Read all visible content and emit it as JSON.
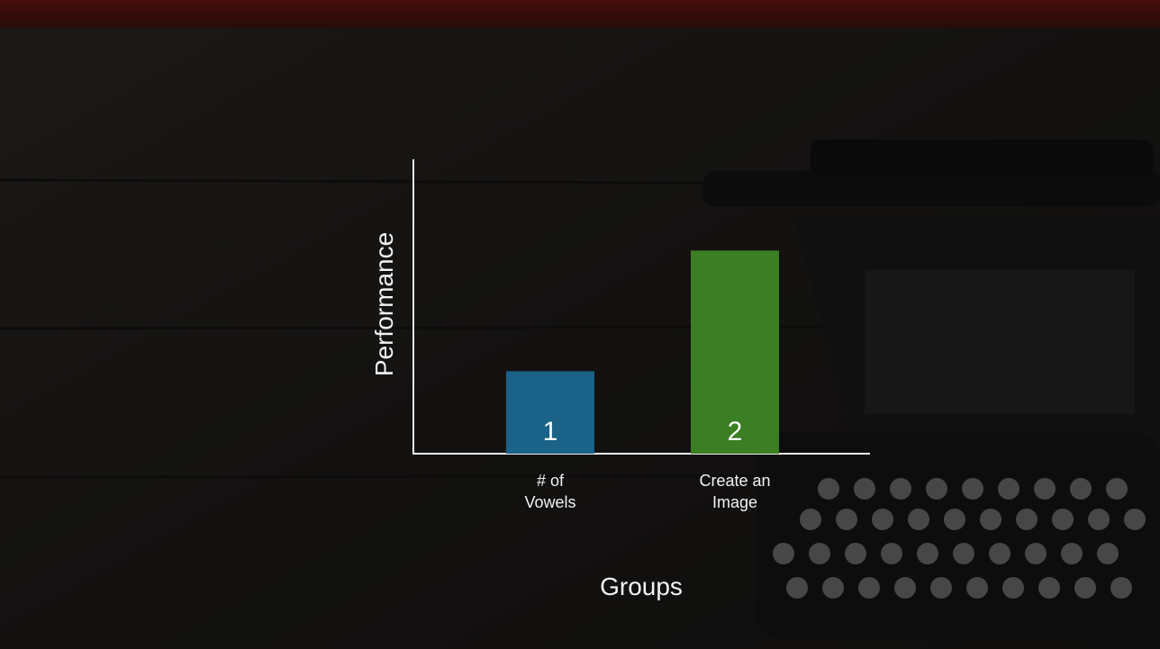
{
  "chart_data": {
    "type": "bar",
    "y_label": "Performance",
    "x_label": "Groups",
    "categories": [
      "# of Vowels",
      "Create an Image"
    ],
    "values": [
      28,
      69
    ],
    "bar_labels": [
      "1",
      "2"
    ],
    "colors": [
      "#1b6288",
      "#3b7e23"
    ],
    "ylim": [
      0,
      100
    ]
  }
}
